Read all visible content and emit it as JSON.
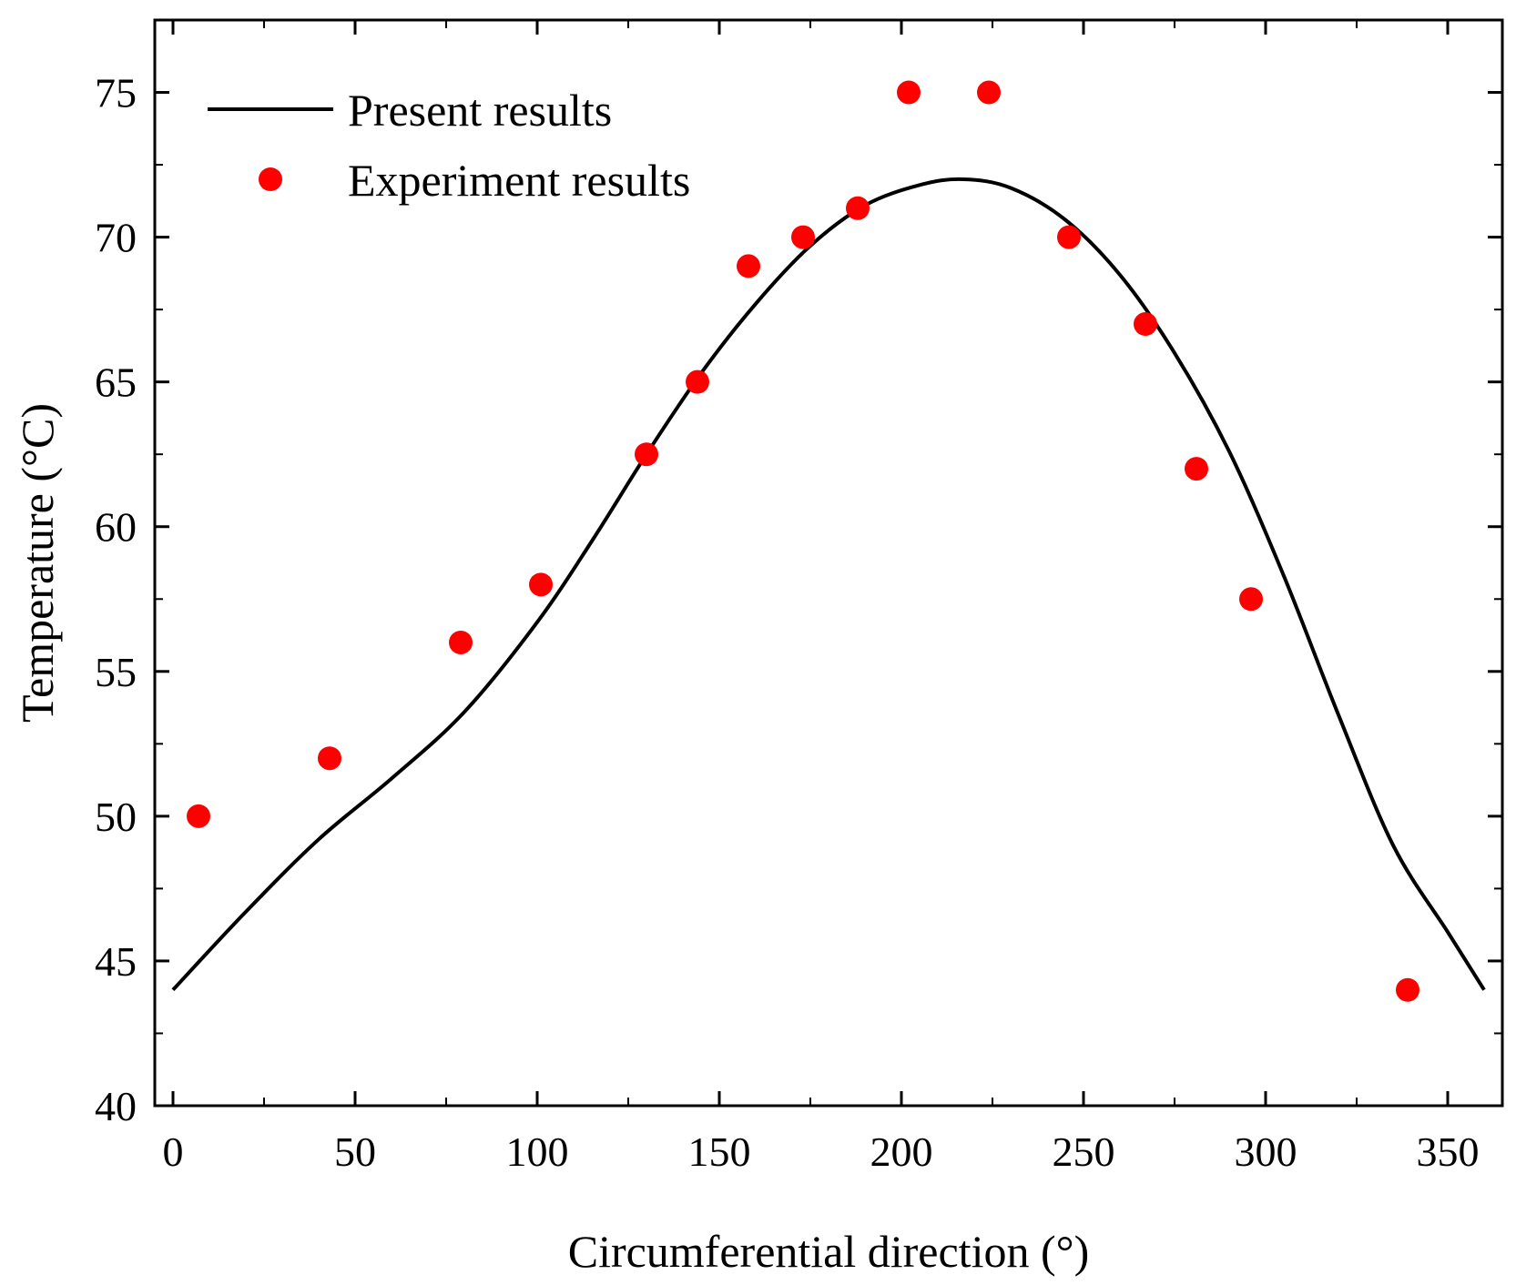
{
  "chart_data": {
    "type": "line+scatter",
    "title": "",
    "xlabel": "Circumferential direction (°)",
    "ylabel": "Temperature (°C)",
    "xlim": [
      -5,
      365
    ],
    "ylim": [
      40,
      77.5
    ],
    "xticks": [
      0,
      50,
      100,
      150,
      200,
      250,
      300,
      350
    ],
    "yticks": [
      40,
      45,
      50,
      55,
      60,
      65,
      70,
      75
    ],
    "grid": false,
    "legend_position": "top-left",
    "series": [
      {
        "name": "Present results",
        "kind": "line",
        "color": "#000000",
        "x": [
          0,
          20,
          40,
          60,
          80,
          100,
          115,
          130,
          145,
          160,
          175,
          190,
          205,
          217,
          230,
          245,
          260,
          275,
          290,
          305,
          320,
          335,
          350,
          360
        ],
        "y": [
          44,
          46.7,
          49.2,
          51.3,
          53.6,
          56.7,
          59.5,
          62.5,
          65.3,
          67.7,
          69.7,
          71.1,
          71.8,
          72.0,
          71.7,
          70.6,
          68.7,
          66.0,
          62.6,
          58.3,
          53.5,
          49.0,
          46.0,
          44.0
        ]
      },
      {
        "name": "Experiment results",
        "kind": "scatter",
        "color": "#ff0000",
        "x": [
          7,
          43,
          79,
          101,
          130,
          144,
          158,
          173,
          188,
          202,
          224,
          246,
          267,
          281,
          296,
          339
        ],
        "y": [
          50,
          52,
          56,
          58,
          62.5,
          65,
          69,
          70,
          71,
          75,
          75,
          70,
          67,
          62,
          57.5,
          44
        ]
      }
    ]
  }
}
